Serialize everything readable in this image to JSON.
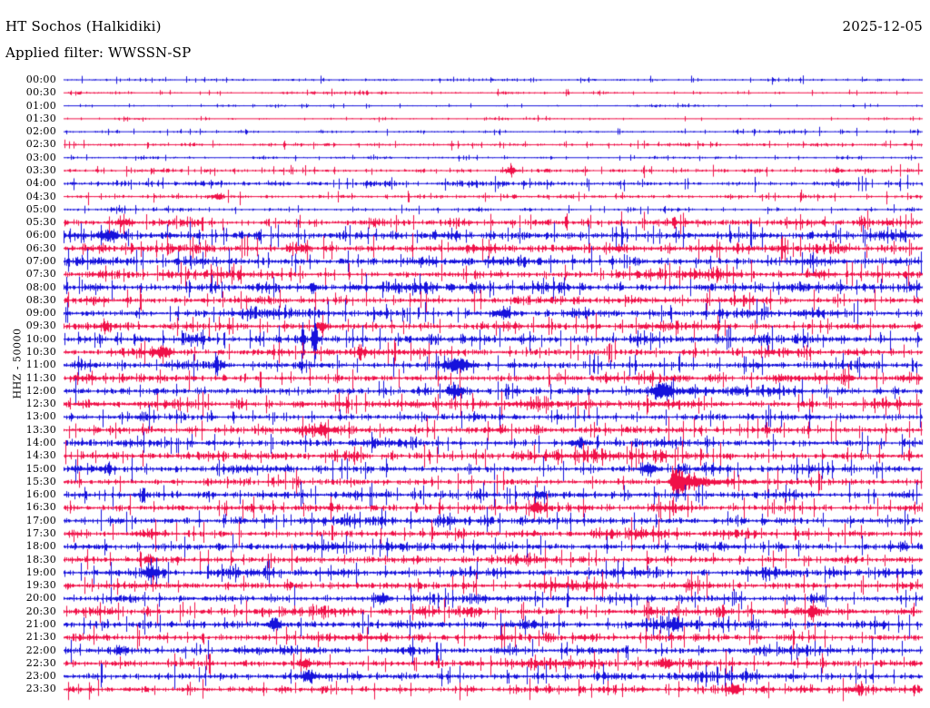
{
  "header": {
    "station_title": "HT Sochos (Halkidiki)",
    "date": "2025-12-05",
    "filter_label": "Applied filter: WWSSN-SP"
  },
  "axis": {
    "scale_label": "HHZ - 50000"
  },
  "colors": {
    "trace_blue": "#1612dc",
    "trace_red": "#f01048",
    "text": "#000000",
    "background": "#ffffff"
  },
  "chart_data": {
    "type": "line",
    "subtype": "helicorder",
    "title": "HT Sochos (Halkidiki)",
    "date": "2025-12-05",
    "filter": "WWSSN-SP",
    "channel": "HHZ",
    "scale": 50000,
    "minutes_per_row": 30,
    "legend_position": "none",
    "grid": false,
    "rows": [
      {
        "time": "00:00",
        "color": "blue",
        "noise": 1.1,
        "events": []
      },
      {
        "time": "00:30",
        "color": "red",
        "noise": 0.9,
        "events": []
      },
      {
        "time": "01:00",
        "color": "blue",
        "noise": 0.65,
        "events": []
      },
      {
        "time": "01:30",
        "color": "red",
        "noise": 0.7,
        "events": []
      },
      {
        "time": "02:00",
        "color": "blue",
        "noise": 1.0,
        "events": []
      },
      {
        "time": "02:30",
        "color": "red",
        "noise": 1.4,
        "events": []
      },
      {
        "time": "03:00",
        "color": "blue",
        "noise": 0.85,
        "events": []
      },
      {
        "time": "03:30",
        "color": "red",
        "noise": 1.7,
        "events": [
          {
            "x": 0.52,
            "a": 3,
            "w": 5
          }
        ]
      },
      {
        "time": "04:00",
        "color": "blue",
        "noise": 2.1,
        "events": []
      },
      {
        "time": "04:30",
        "color": "red",
        "noise": 1.8,
        "events": [
          {
            "x": 0.18,
            "a": 3,
            "w": 4
          }
        ]
      },
      {
        "time": "05:00",
        "color": "blue",
        "noise": 1.3,
        "events": []
      },
      {
        "time": "05:30",
        "color": "red",
        "noise": 3.0,
        "events": [
          {
            "x": 0.07,
            "a": 4,
            "w": 6
          }
        ]
      },
      {
        "time": "06:00",
        "color": "blue",
        "noise": 3.8,
        "events": [
          {
            "x": 0.05,
            "a": 4,
            "w": 6
          }
        ]
      },
      {
        "time": "06:30",
        "color": "red",
        "noise": 3.8,
        "events": []
      },
      {
        "time": "07:00",
        "color": "blue",
        "noise": 3.6,
        "events": []
      },
      {
        "time": "07:30",
        "color": "red",
        "noise": 3.3,
        "events": []
      },
      {
        "time": "08:00",
        "color": "blue",
        "noise": 3.4,
        "events": [
          {
            "x": 0.29,
            "a": 5,
            "w": 3
          }
        ]
      },
      {
        "time": "08:30",
        "color": "red",
        "noise": 3.1,
        "events": []
      },
      {
        "time": "09:00",
        "color": "blue",
        "noise": 3.4,
        "events": [
          {
            "x": 0.51,
            "a": 5,
            "w": 6
          }
        ]
      },
      {
        "time": "09:30",
        "color": "red",
        "noise": 3.4,
        "events": [
          {
            "x": 0.3,
            "a": 6,
            "w": 4
          }
        ]
      },
      {
        "time": "10:00",
        "color": "blue",
        "noise": 3.4,
        "events": [
          {
            "x": 0.292,
            "a": 33,
            "w": 1.6
          },
          {
            "x": 0.278,
            "a": 20,
            "w": 1.3
          }
        ]
      },
      {
        "time": "10:30",
        "color": "red",
        "noise": 3.0,
        "events": [
          {
            "x": 0.115,
            "a": 6,
            "w": 6
          }
        ]
      },
      {
        "time": "11:00",
        "color": "blue",
        "noise": 3.4,
        "events": [
          {
            "x": 0.458,
            "a": 8,
            "w": 10
          }
        ]
      },
      {
        "time": "11:30",
        "color": "red",
        "noise": 3.2,
        "events": []
      },
      {
        "time": "12:00",
        "color": "blue",
        "noise": 3.3,
        "events": [
          {
            "x": 0.697,
            "a": 8,
            "w": 8
          },
          {
            "x": 0.455,
            "a": 5,
            "w": 6
          }
        ]
      },
      {
        "time": "12:30",
        "color": "red",
        "noise": 3.3,
        "events": []
      },
      {
        "time": "13:00",
        "color": "blue",
        "noise": 3.2,
        "events": []
      },
      {
        "time": "13:30",
        "color": "red",
        "noise": 3.4,
        "events": [
          {
            "x": 0.3,
            "a": 5,
            "w": 5
          }
        ]
      },
      {
        "time": "14:00",
        "color": "blue",
        "noise": 3.2,
        "events": [
          {
            "x": 0.6,
            "a": 5,
            "w": 6
          }
        ]
      },
      {
        "time": "14:30",
        "color": "red",
        "noise": 3.3,
        "events": []
      },
      {
        "time": "15:00",
        "color": "blue",
        "noise": 3.2,
        "events": [
          {
            "x": 0.68,
            "a": 6,
            "w": 5
          }
        ]
      },
      {
        "time": "15:30",
        "color": "red",
        "noise": 3.3,
        "events": [
          {
            "x": 0.708,
            "a": 13,
            "type": "quake",
            "decay": 18
          }
        ]
      },
      {
        "time": "16:00",
        "color": "blue",
        "noise": 3.5,
        "events": []
      },
      {
        "time": "16:30",
        "color": "red",
        "noise": 3.2,
        "events": [
          {
            "x": 0.55,
            "a": 5,
            "w": 5
          }
        ]
      },
      {
        "time": "17:00",
        "color": "blue",
        "noise": 3.3,
        "events": []
      },
      {
        "time": "17:30",
        "color": "red",
        "noise": 3.2,
        "events": []
      },
      {
        "time": "18:00",
        "color": "blue",
        "noise": 3.3,
        "events": []
      },
      {
        "time": "18:30",
        "color": "red",
        "noise": 3.2,
        "events": [
          {
            "x": 0.1,
            "a": 5,
            "w": 4
          }
        ]
      },
      {
        "time": "19:00",
        "color": "blue",
        "noise": 3.4,
        "events": [
          {
            "x": 0.1,
            "a": 5,
            "w": 5
          }
        ]
      },
      {
        "time": "19:30",
        "color": "red",
        "noise": 3.3,
        "events": []
      },
      {
        "time": "20:00",
        "color": "blue",
        "noise": 3.4,
        "events": [
          {
            "x": 0.37,
            "a": 5,
            "w": 5
          }
        ]
      },
      {
        "time": "20:30",
        "color": "red",
        "noise": 3.2,
        "events": [
          {
            "x": 0.872,
            "a": 7,
            "w": 3
          }
        ]
      },
      {
        "time": "21:00",
        "color": "blue",
        "noise": 3.5,
        "events": [
          {
            "x": 0.245,
            "a": 7,
            "w": 4
          },
          {
            "x": 0.71,
            "a": 6,
            "w": 5
          }
        ]
      },
      {
        "time": "21:30",
        "color": "red",
        "noise": 3.1,
        "events": []
      },
      {
        "time": "22:00",
        "color": "blue",
        "noise": 3.3,
        "events": []
      },
      {
        "time": "22:30",
        "color": "red",
        "noise": 3.3,
        "events": [
          {
            "x": 0.7,
            "a": 6,
            "w": 5
          },
          {
            "x": 0.28,
            "a": 5,
            "w": 4
          }
        ]
      },
      {
        "time": "23:00",
        "color": "blue",
        "noise": 3.4,
        "events": [
          {
            "x": 0.285,
            "a": 6,
            "w": 5
          }
        ]
      },
      {
        "time": "23:30",
        "color": "red",
        "noise": 2.9,
        "events": [
          {
            "x": 0.78,
            "a": 5,
            "w": 5
          }
        ]
      }
    ]
  }
}
